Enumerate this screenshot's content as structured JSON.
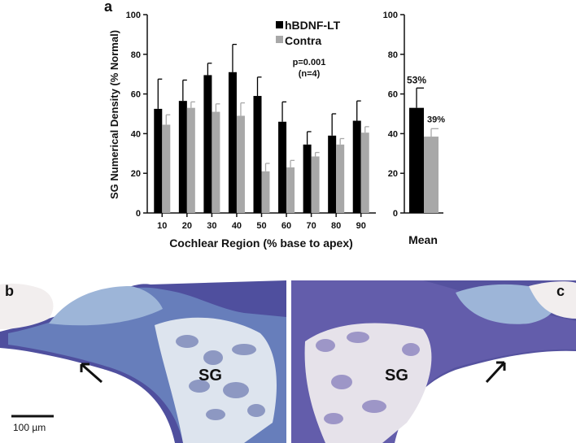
{
  "panel_labels": {
    "a": "a",
    "b": "b",
    "c": "c"
  },
  "colors": {
    "treated": "#000000",
    "contra": "#a8a8a8",
    "tissue_light": "#c9d7e8",
    "tissue_blue": "#5577b0",
    "tissue_dark": "#3a3a93",
    "bone_pale": "#e8e4ea"
  },
  "chart_data": [
    {
      "type": "bar",
      "categories": [
        "10",
        "20",
        "30",
        "40",
        "50",
        "60",
        "70",
        "80",
        "90"
      ],
      "series": [
        {
          "name": "hBDNF-LT",
          "values": [
            52.5,
            56.5,
            69.5,
            71,
            59,
            46,
            34.5,
            39,
            46.5
          ],
          "error": [
            15,
            10.5,
            6,
            14,
            9.5,
            10,
            6.5,
            11,
            10
          ]
        },
        {
          "name": "Contra",
          "values": [
            44.5,
            53,
            51,
            49,
            21,
            23,
            28.5,
            34.5,
            40.5
          ],
          "error": [
            5,
            3,
            4,
            6.5,
            4,
            3.5,
            2,
            3,
            3
          ]
        }
      ],
      "ylim": [
        0,
        100
      ],
      "yticks": [
        "0",
        "20",
        "40",
        "60",
        "80",
        "100"
      ],
      "ylabel": "SG Numerical Density (% Normal)",
      "xlabel": "Cochlear Region (% base to apex)",
      "legend_position": "top-right",
      "annotation_lines": [
        "p=0.001",
        "(n=4)"
      ]
    },
    {
      "type": "bar",
      "categories": [
        "Mean"
      ],
      "series": [
        {
          "name": "hBDNF-LT",
          "values": [
            53
          ],
          "error": [
            10
          ]
        },
        {
          "name": "Contra",
          "values": [
            38.5
          ],
          "error": [
            4
          ]
        }
      ],
      "ylim": [
        0,
        100
      ],
      "yticks": [
        "0",
        "20",
        "40",
        "60",
        "80",
        "100"
      ],
      "xlabel": "Mean",
      "data_labels": [
        "53%",
        "39%"
      ]
    }
  ],
  "images": {
    "b": {
      "sg_label": "SG"
    },
    "c": {
      "sg_label": "SG"
    },
    "scale_bar": {
      "label": "100 µm"
    }
  }
}
